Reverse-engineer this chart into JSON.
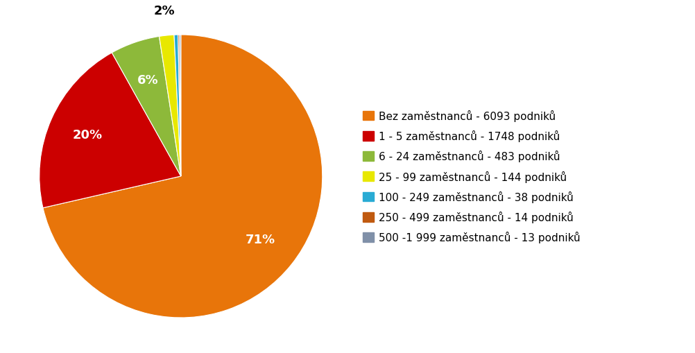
{
  "labels": [
    "Bez zaměstnanců - 6093 podniků",
    "1 - 5 zaměstnanců - 1748 podniků",
    "6 - 24 zaměstnanců - 483 podniků",
    "25 - 99 zaměstnanců - 144 podniků",
    "100 - 249 zaměstnanců - 38 podniků",
    "250 - 499 zaměstnanců - 14 podniků",
    "500 -1 999 zaměstnanců - 13 podniků"
  ],
  "values": [
    6093,
    1748,
    483,
    144,
    38,
    14,
    13
  ],
  "colors": [
    "#E8750A",
    "#CC0000",
    "#8DB93A",
    "#E8E800",
    "#29ABD4",
    "#C05A10",
    "#8090A8"
  ],
  "background_color": "#FFFFFF",
  "startangle": 90,
  "pct_fontsize": 13,
  "legend_fontsize": 11
}
